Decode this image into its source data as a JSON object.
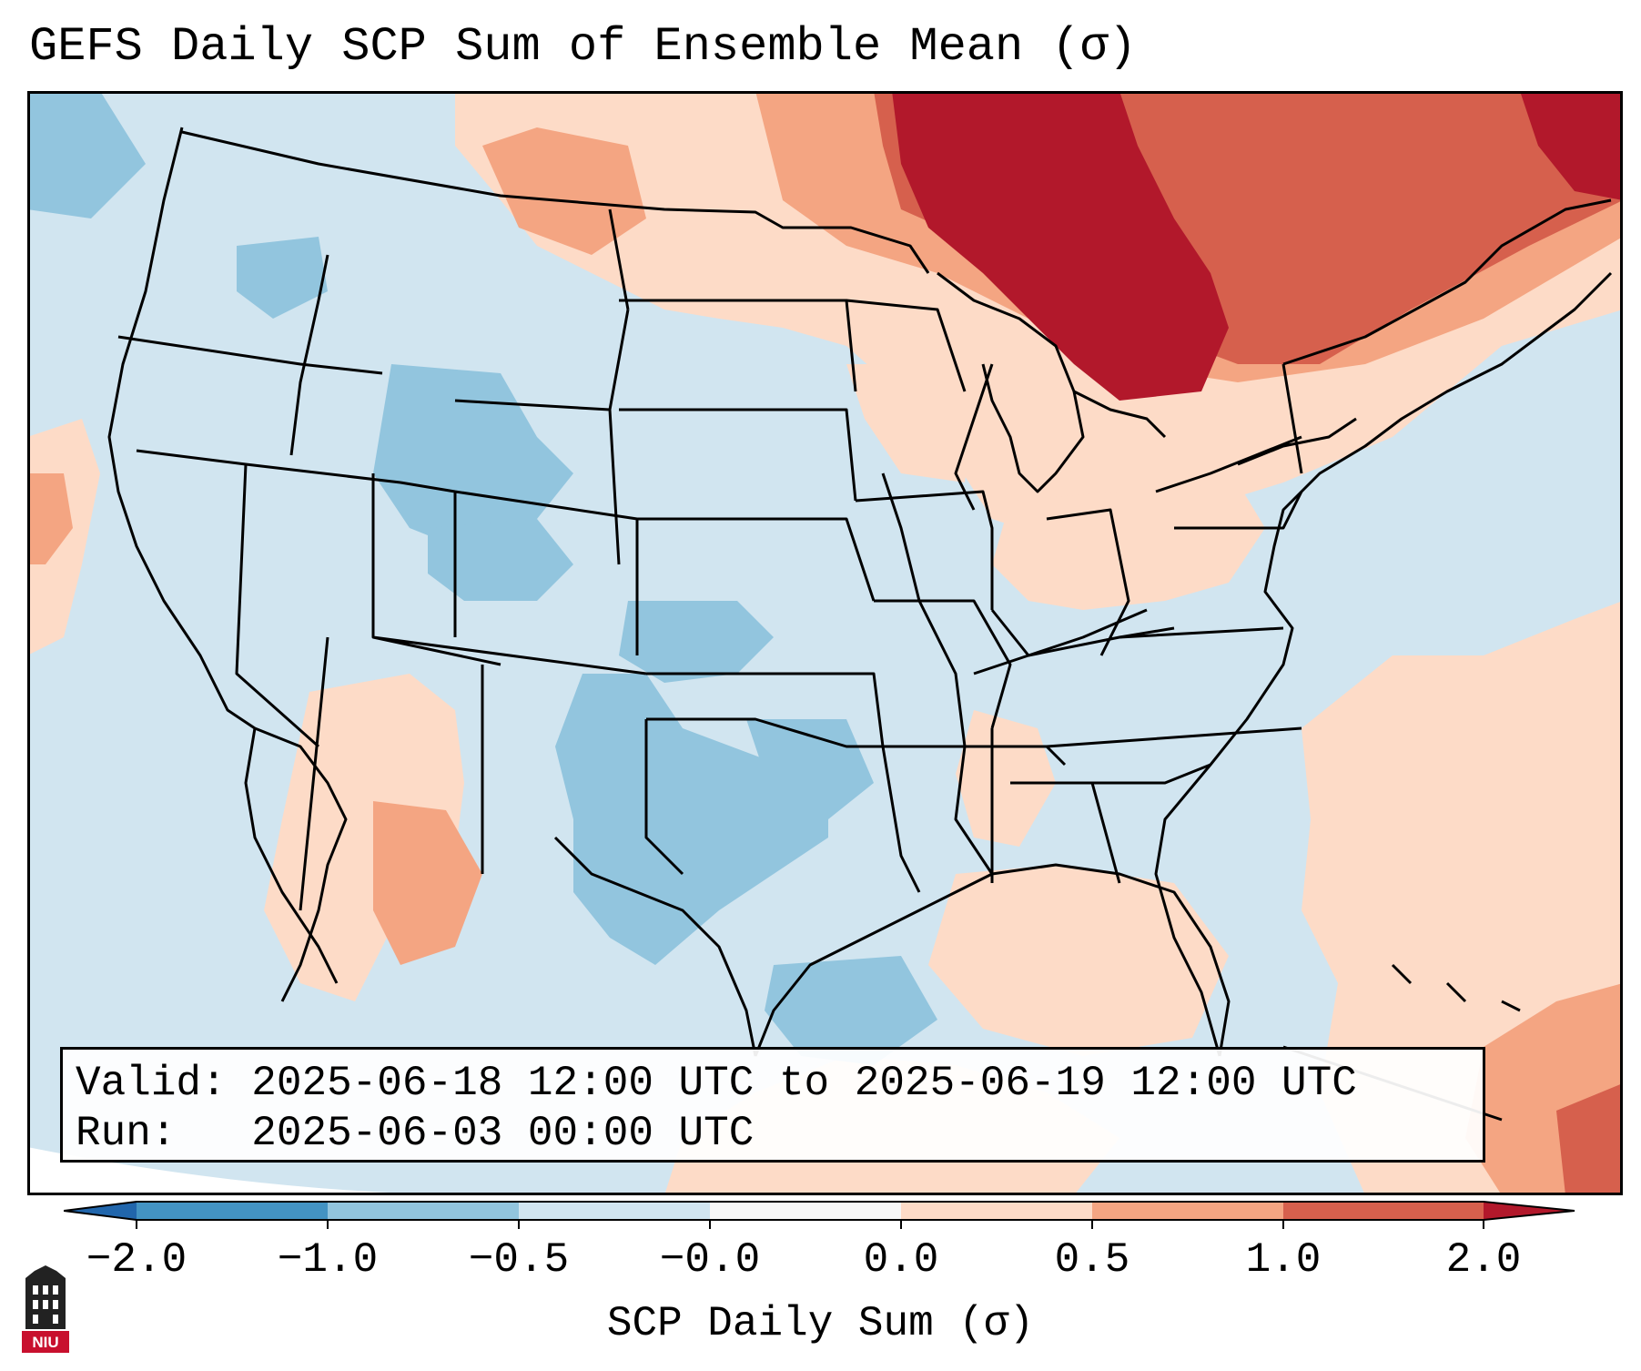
{
  "title": "GEFS Daily SCP Sum of Ensemble Mean (σ)",
  "info": {
    "valid_label": "Valid:",
    "valid_value": "2025-06-18 12:00 UTC to 2025-06-19 12:00 UTC",
    "run_label": "Run:",
    "run_value": "2025-06-03 00:00 UTC"
  },
  "colorbar": {
    "label": "SCP Daily Sum (σ)",
    "ticks": [
      "−2.0",
      "−1.0",
      "−0.5",
      "−0.0",
      "0.0",
      "0.5",
      "1.0",
      "2.0"
    ],
    "colors": [
      "#2166ac",
      "#4393c3",
      "#92c5de",
      "#d1e5f0",
      "#f7f7f7",
      "#fddbc7",
      "#f4a582",
      "#d6604d",
      "#b2182b"
    ]
  },
  "logo": {
    "text": "NIU"
  },
  "map": {
    "region": "Contiguous United States",
    "variable": "SCP daily sum anomaly"
  }
}
